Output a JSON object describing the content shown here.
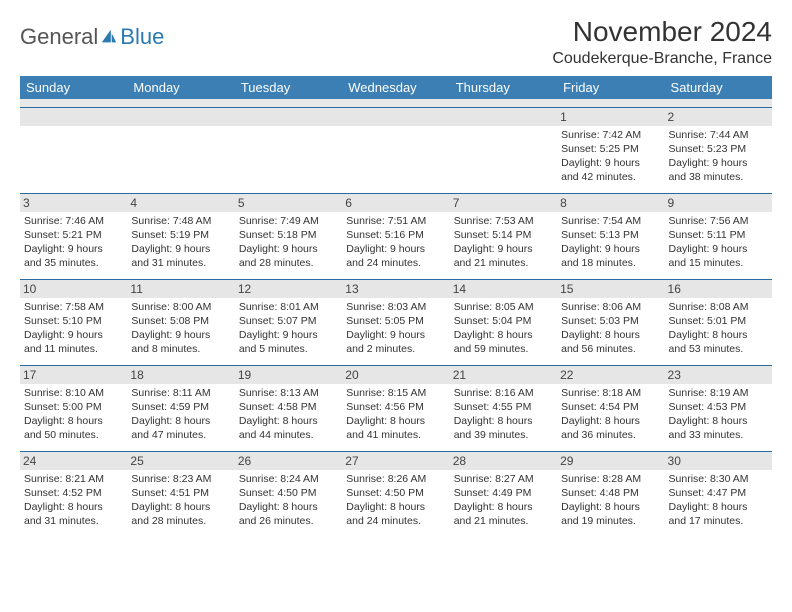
{
  "logo": {
    "part1": "General",
    "part2": "Blue"
  },
  "title": "November 2024",
  "location": "Coudekerque-Branche, France",
  "dayHeaders": [
    "Sunday",
    "Monday",
    "Tuesday",
    "Wednesday",
    "Thursday",
    "Friday",
    "Saturday"
  ],
  "colors": {
    "headerBg": "#3b7fb5",
    "headerText": "#ffffff",
    "rowDivider": "#2a6aa0",
    "dayStripe": "#e6e6e6",
    "logoAccent": "#2a7ab0"
  },
  "weeks": [
    [
      null,
      null,
      null,
      null,
      null,
      {
        "n": "1",
        "sunrise": "Sunrise: 7:42 AM",
        "sunset": "Sunset: 5:25 PM",
        "daylight1": "Daylight: 9 hours",
        "daylight2": "and 42 minutes."
      },
      {
        "n": "2",
        "sunrise": "Sunrise: 7:44 AM",
        "sunset": "Sunset: 5:23 PM",
        "daylight1": "Daylight: 9 hours",
        "daylight2": "and 38 minutes."
      }
    ],
    [
      {
        "n": "3",
        "sunrise": "Sunrise: 7:46 AM",
        "sunset": "Sunset: 5:21 PM",
        "daylight1": "Daylight: 9 hours",
        "daylight2": "and 35 minutes."
      },
      {
        "n": "4",
        "sunrise": "Sunrise: 7:48 AM",
        "sunset": "Sunset: 5:19 PM",
        "daylight1": "Daylight: 9 hours",
        "daylight2": "and 31 minutes."
      },
      {
        "n": "5",
        "sunrise": "Sunrise: 7:49 AM",
        "sunset": "Sunset: 5:18 PM",
        "daylight1": "Daylight: 9 hours",
        "daylight2": "and 28 minutes."
      },
      {
        "n": "6",
        "sunrise": "Sunrise: 7:51 AM",
        "sunset": "Sunset: 5:16 PM",
        "daylight1": "Daylight: 9 hours",
        "daylight2": "and 24 minutes."
      },
      {
        "n": "7",
        "sunrise": "Sunrise: 7:53 AM",
        "sunset": "Sunset: 5:14 PM",
        "daylight1": "Daylight: 9 hours",
        "daylight2": "and 21 minutes."
      },
      {
        "n": "8",
        "sunrise": "Sunrise: 7:54 AM",
        "sunset": "Sunset: 5:13 PM",
        "daylight1": "Daylight: 9 hours",
        "daylight2": "and 18 minutes."
      },
      {
        "n": "9",
        "sunrise": "Sunrise: 7:56 AM",
        "sunset": "Sunset: 5:11 PM",
        "daylight1": "Daylight: 9 hours",
        "daylight2": "and 15 minutes."
      }
    ],
    [
      {
        "n": "10",
        "sunrise": "Sunrise: 7:58 AM",
        "sunset": "Sunset: 5:10 PM",
        "daylight1": "Daylight: 9 hours",
        "daylight2": "and 11 minutes."
      },
      {
        "n": "11",
        "sunrise": "Sunrise: 8:00 AM",
        "sunset": "Sunset: 5:08 PM",
        "daylight1": "Daylight: 9 hours",
        "daylight2": "and 8 minutes."
      },
      {
        "n": "12",
        "sunrise": "Sunrise: 8:01 AM",
        "sunset": "Sunset: 5:07 PM",
        "daylight1": "Daylight: 9 hours",
        "daylight2": "and 5 minutes."
      },
      {
        "n": "13",
        "sunrise": "Sunrise: 8:03 AM",
        "sunset": "Sunset: 5:05 PM",
        "daylight1": "Daylight: 9 hours",
        "daylight2": "and 2 minutes."
      },
      {
        "n": "14",
        "sunrise": "Sunrise: 8:05 AM",
        "sunset": "Sunset: 5:04 PM",
        "daylight1": "Daylight: 8 hours",
        "daylight2": "and 59 minutes."
      },
      {
        "n": "15",
        "sunrise": "Sunrise: 8:06 AM",
        "sunset": "Sunset: 5:03 PM",
        "daylight1": "Daylight: 8 hours",
        "daylight2": "and 56 minutes."
      },
      {
        "n": "16",
        "sunrise": "Sunrise: 8:08 AM",
        "sunset": "Sunset: 5:01 PM",
        "daylight1": "Daylight: 8 hours",
        "daylight2": "and 53 minutes."
      }
    ],
    [
      {
        "n": "17",
        "sunrise": "Sunrise: 8:10 AM",
        "sunset": "Sunset: 5:00 PM",
        "daylight1": "Daylight: 8 hours",
        "daylight2": "and 50 minutes."
      },
      {
        "n": "18",
        "sunrise": "Sunrise: 8:11 AM",
        "sunset": "Sunset: 4:59 PM",
        "daylight1": "Daylight: 8 hours",
        "daylight2": "and 47 minutes."
      },
      {
        "n": "19",
        "sunrise": "Sunrise: 8:13 AM",
        "sunset": "Sunset: 4:58 PM",
        "daylight1": "Daylight: 8 hours",
        "daylight2": "and 44 minutes."
      },
      {
        "n": "20",
        "sunrise": "Sunrise: 8:15 AM",
        "sunset": "Sunset: 4:56 PM",
        "daylight1": "Daylight: 8 hours",
        "daylight2": "and 41 minutes."
      },
      {
        "n": "21",
        "sunrise": "Sunrise: 8:16 AM",
        "sunset": "Sunset: 4:55 PM",
        "daylight1": "Daylight: 8 hours",
        "daylight2": "and 39 minutes."
      },
      {
        "n": "22",
        "sunrise": "Sunrise: 8:18 AM",
        "sunset": "Sunset: 4:54 PM",
        "daylight1": "Daylight: 8 hours",
        "daylight2": "and 36 minutes."
      },
      {
        "n": "23",
        "sunrise": "Sunrise: 8:19 AM",
        "sunset": "Sunset: 4:53 PM",
        "daylight1": "Daylight: 8 hours",
        "daylight2": "and 33 minutes."
      }
    ],
    [
      {
        "n": "24",
        "sunrise": "Sunrise: 8:21 AM",
        "sunset": "Sunset: 4:52 PM",
        "daylight1": "Daylight: 8 hours",
        "daylight2": "and 31 minutes."
      },
      {
        "n": "25",
        "sunrise": "Sunrise: 8:23 AM",
        "sunset": "Sunset: 4:51 PM",
        "daylight1": "Daylight: 8 hours",
        "daylight2": "and 28 minutes."
      },
      {
        "n": "26",
        "sunrise": "Sunrise: 8:24 AM",
        "sunset": "Sunset: 4:50 PM",
        "daylight1": "Daylight: 8 hours",
        "daylight2": "and 26 minutes."
      },
      {
        "n": "27",
        "sunrise": "Sunrise: 8:26 AM",
        "sunset": "Sunset: 4:50 PM",
        "daylight1": "Daylight: 8 hours",
        "daylight2": "and 24 minutes."
      },
      {
        "n": "28",
        "sunrise": "Sunrise: 8:27 AM",
        "sunset": "Sunset: 4:49 PM",
        "daylight1": "Daylight: 8 hours",
        "daylight2": "and 21 minutes."
      },
      {
        "n": "29",
        "sunrise": "Sunrise: 8:28 AM",
        "sunset": "Sunset: 4:48 PM",
        "daylight1": "Daylight: 8 hours",
        "daylight2": "and 19 minutes."
      },
      {
        "n": "30",
        "sunrise": "Sunrise: 8:30 AM",
        "sunset": "Sunset: 4:47 PM",
        "daylight1": "Daylight: 8 hours",
        "daylight2": "and 17 minutes."
      }
    ]
  ]
}
